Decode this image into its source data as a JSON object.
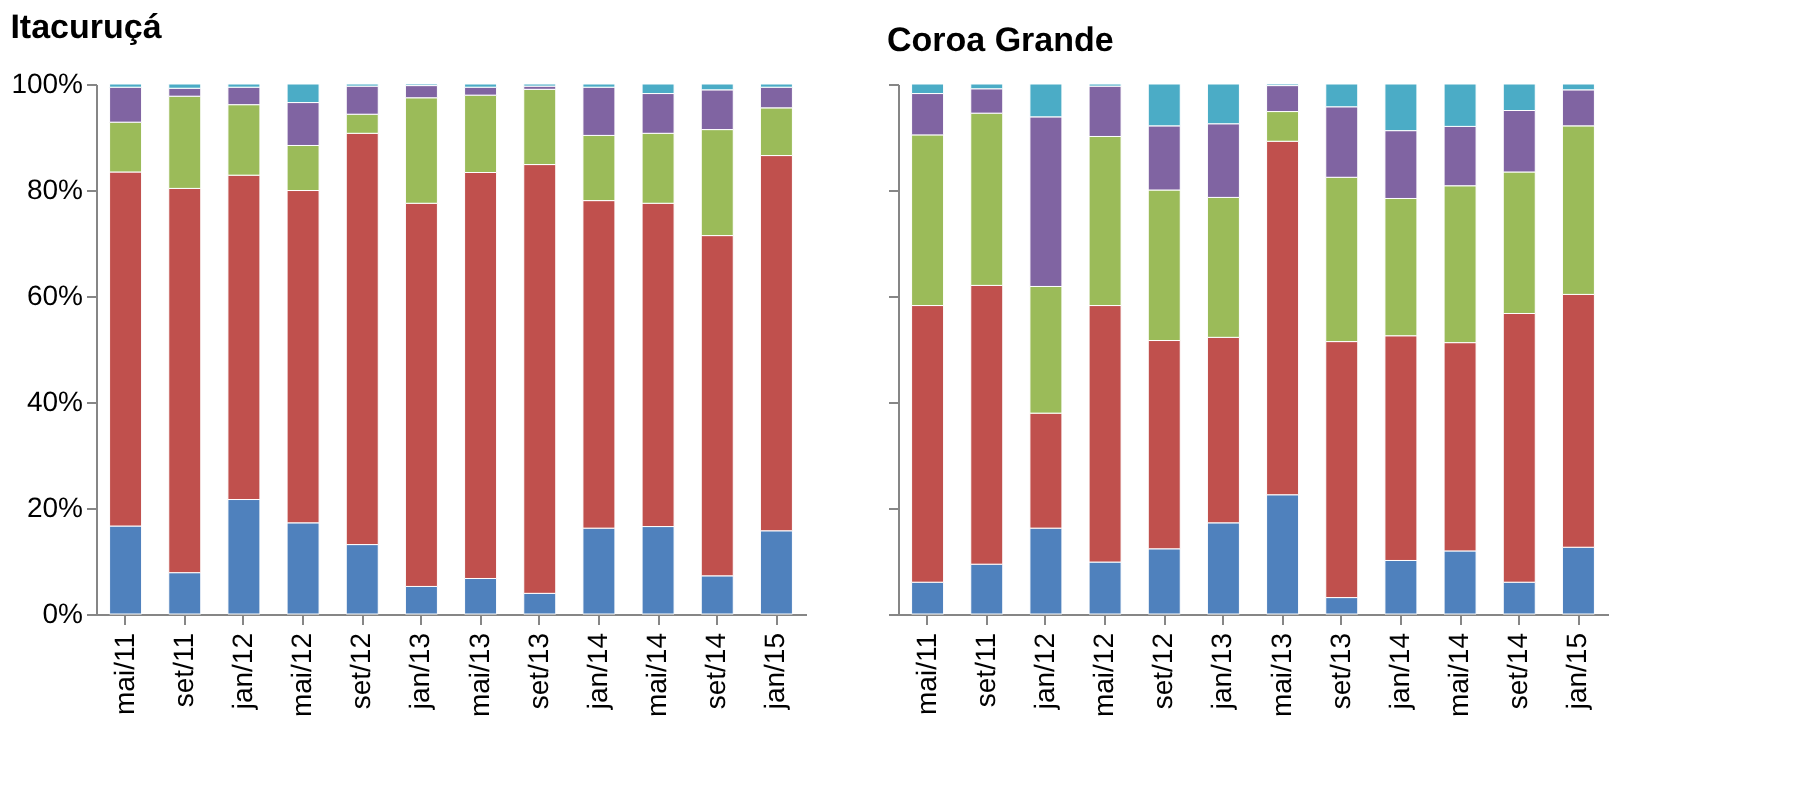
{
  "chart_data": [
    {
      "type": "bar",
      "title": "Itacuruçá",
      "stacked": true,
      "categories": [
        "mai/11",
        "set/11",
        "jan/12",
        "mai/12",
        "set/12",
        "jan/13",
        "mai/13",
        "set/13",
        "jan/14",
        "mai/14",
        "set/14",
        "jan/15"
      ],
      "series": [
        {
          "color": "#4f81bd",
          "values": [
            16.6,
            7.8,
            21.6,
            17.2,
            13.1,
            5.2,
            6.7,
            3.9,
            16.2,
            16.5,
            7.2,
            15.7
          ]
        },
        {
          "color": "#c0504d",
          "values": [
            66.8,
            72.5,
            61.2,
            62.7,
            77.6,
            72.3,
            76.6,
            80.9,
            61.8,
            61.0,
            64.2,
            70.8
          ]
        },
        {
          "color": "#9bbb59",
          "values": [
            9.4,
            17.4,
            13.3,
            8.5,
            3.6,
            19.9,
            14.6,
            14.2,
            12.3,
            13.2,
            20.0,
            9.0
          ]
        },
        {
          "color": "#8064a2",
          "values": [
            6.6,
            1.5,
            3.3,
            8.1,
            5.3,
            2.3,
            1.5,
            0.6,
            9.1,
            7.5,
            7.5,
            3.9
          ]
        },
        {
          "color": "#4bacc6",
          "values": [
            0.6,
            0.8,
            0.6,
            3.5,
            0.4,
            0.3,
            0.6,
            0.4,
            0.6,
            1.8,
            1.1,
            0.6
          ]
        }
      ],
      "ylim": [
        0,
        100
      ],
      "yticks": [
        {
          "value": 0,
          "label": "0%"
        },
        {
          "value": 20,
          "label": "20%"
        },
        {
          "value": 40,
          "label": "40%"
        },
        {
          "value": 60,
          "label": "60%"
        },
        {
          "value": 80,
          "label": "80%"
        },
        {
          "value": 100,
          "label": "100%"
        }
      ],
      "grid": false,
      "legend": false
    },
    {
      "type": "bar",
      "title": "Coroa Grande",
      "stacked": true,
      "categories": [
        "mai/11",
        "set/11",
        "jan/12",
        "mai/12",
        "set/12",
        "jan/13",
        "mai/13",
        "set/13",
        "jan/14",
        "mai/14",
        "set/14",
        "jan/15"
      ],
      "series": [
        {
          "color": "#4f81bd",
          "values": [
            6.0,
            9.4,
            16.2,
            9.8,
            12.3,
            17.2,
            22.5,
            3.1,
            10.1,
            11.9,
            6.0,
            12.6
          ]
        },
        {
          "color": "#c0504d",
          "values": [
            52.2,
            52.6,
            21.7,
            48.4,
            39.3,
            35.0,
            66.7,
            48.3,
            42.4,
            39.3,
            50.7,
            47.7
          ]
        },
        {
          "color": "#9bbb59",
          "values": [
            32.2,
            32.5,
            23.9,
            31.9,
            28.4,
            26.4,
            5.6,
            31.0,
            25.9,
            29.6,
            26.7,
            31.8
          ]
        },
        {
          "color": "#8064a2",
          "values": [
            7.8,
            4.6,
            32.0,
            9.5,
            12.1,
            13.9,
            4.9,
            13.3,
            12.8,
            11.2,
            11.6,
            6.8
          ]
        },
        {
          "color": "#4bacc6",
          "values": [
            1.8,
            0.9,
            6.2,
            0.4,
            7.9,
            7.5,
            0.3,
            4.3,
            8.8,
            8.0,
            5.0,
            1.1
          ]
        }
      ],
      "ylim": [
        0,
        100
      ],
      "yticks": [
        {
          "value": 0,
          "label": null
        },
        {
          "value": 20,
          "label": null
        },
        {
          "value": 40,
          "label": null
        },
        {
          "value": 60,
          "label": null
        },
        {
          "value": 80,
          "label": null
        },
        {
          "value": 100,
          "label": null
        }
      ],
      "grid": false,
      "legend": false,
      "tick_labels": "x"
    }
  ]
}
